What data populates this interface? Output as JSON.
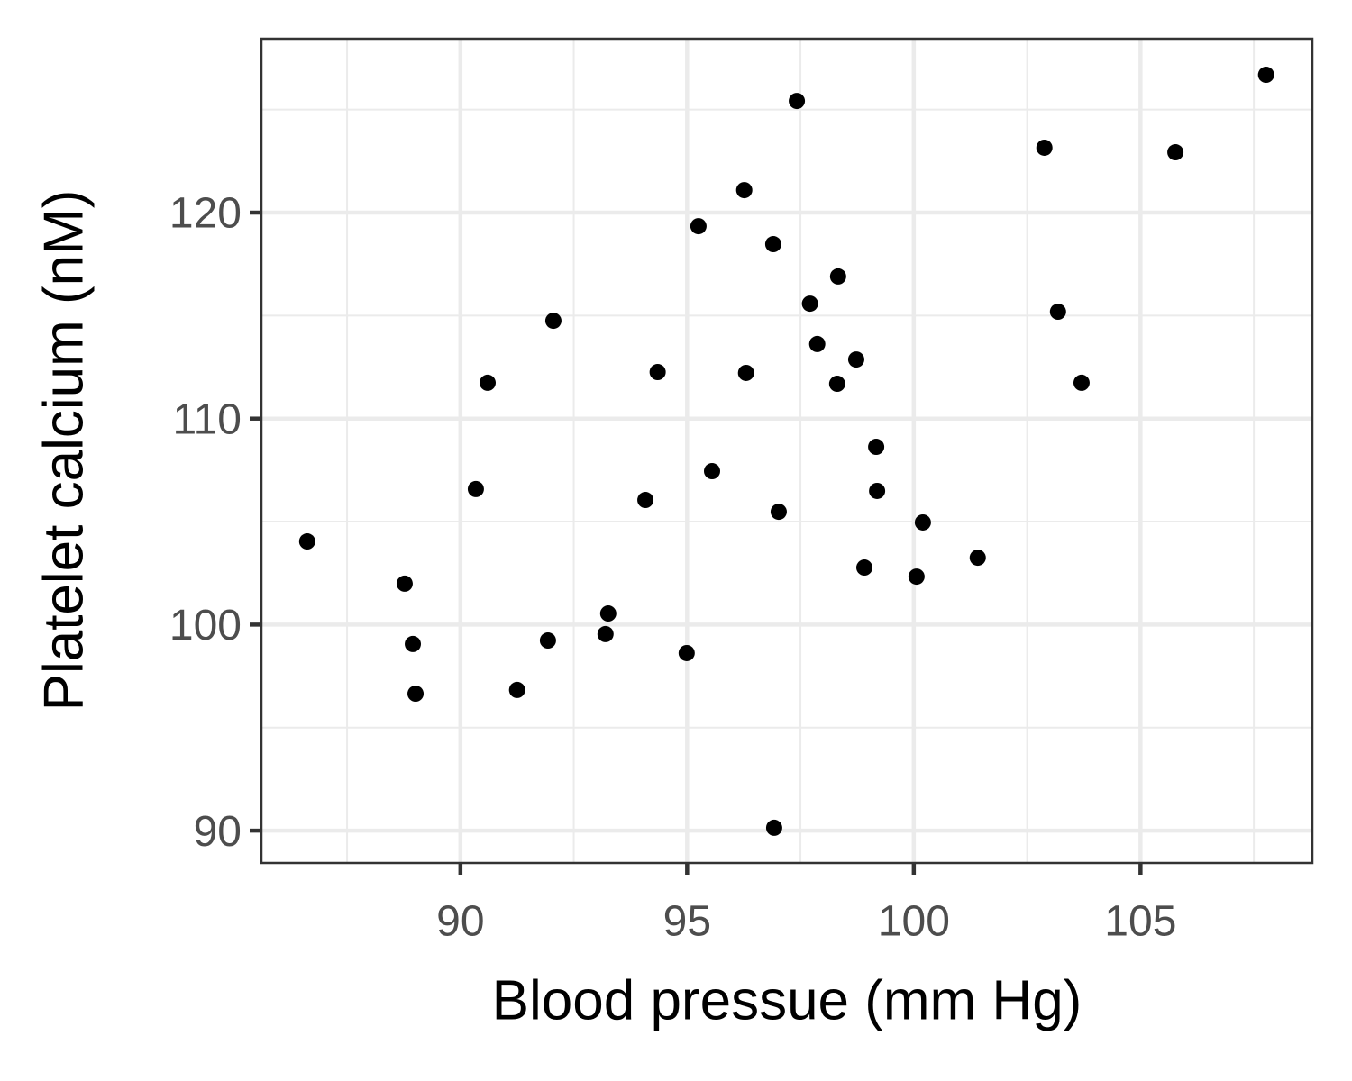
{
  "chart_data": {
    "type": "scatter",
    "x_label": "Blood pressue (mm Hg)",
    "y_label": "Platelet calcium (nM)",
    "xlim": [
      85.61,
      108.79
    ],
    "ylim": [
      88.43,
      128.44
    ],
    "xticks": [
      90,
      95,
      100,
      105
    ],
    "yticks": [
      90,
      100,
      110,
      120
    ],
    "grid": true,
    "minor_grid": true,
    "color": "#000000",
    "x": [
      86.62,
      88.77,
      88.95,
      89.01,
      90.34,
      90.6,
      91.25,
      91.93,
      92.05,
      93.2,
      93.26,
      94.08,
      94.35,
      94.99,
      95.25,
      95.55,
      96.26,
      96.3,
      96.9,
      96.92,
      97.02,
      97.42,
      97.71,
      97.87,
      98.33,
      98.31,
      98.73,
      98.91,
      99.17,
      99.19,
      100.06,
      100.2,
      101.41,
      102.88,
      103.18,
      103.7,
      105.77,
      107.77
    ],
    "values": [
      104.04,
      101.99,
      99.06,
      96.65,
      106.58,
      111.74,
      96.83,
      99.23,
      114.75,
      99.54,
      100.54,
      106.05,
      112.26,
      98.62,
      119.34,
      107.45,
      121.09,
      112.22,
      118.47,
      90.14,
      105.48,
      125.42,
      115.58,
      113.62,
      116.9,
      111.69,
      112.87,
      102.77,
      108.63,
      106.49,
      102.33,
      104.96,
      103.25,
      123.15,
      115.19,
      111.74,
      122.93,
      126.69
    ]
  }
}
